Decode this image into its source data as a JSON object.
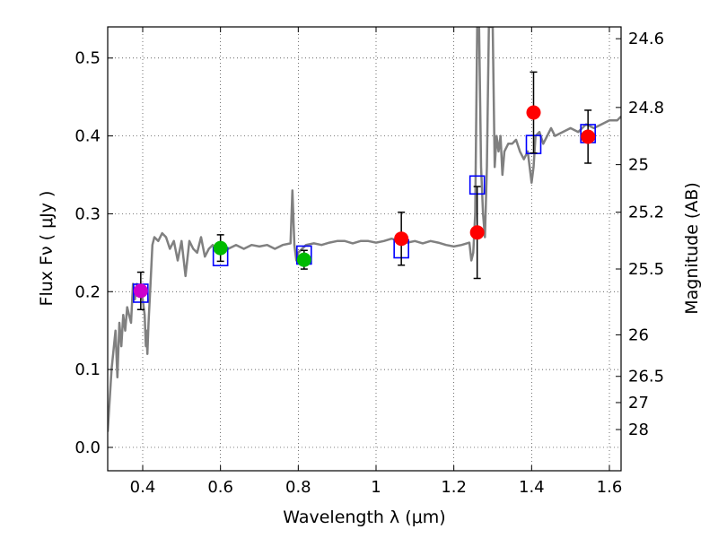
{
  "chart_data": {
    "type": "scatter",
    "xlabel": "Wavelength  λ (μm)",
    "ylabel": "Flux  Fν  ( μJy )",
    "ylabel_right": "Magnitude (AB)",
    "xlim": [
      0.31,
      1.63
    ],
    "ylim": [
      -0.03,
      0.54
    ],
    "xticks": [
      0.4,
      0.6,
      0.8,
      1.0,
      1.2,
      1.4,
      1.6
    ],
    "xtick_labels": [
      "0.4",
      "0.6",
      "0.8",
      "1",
      "1.2",
      "1.4",
      "1.6"
    ],
    "yticks": [
      0.0,
      0.1,
      0.2,
      0.3,
      0.4,
      0.5
    ],
    "ytick_labels": [
      "0.0",
      "0.1",
      "0.2",
      "0.3",
      "0.4",
      "0.5"
    ],
    "mag_ticks": [
      24.6,
      24.8,
      25,
      25.2,
      25.5,
      26,
      26.5,
      27,
      28
    ],
    "mag_tick_labels": [
      "24.6",
      "24.8",
      "25",
      "25.2",
      "25.5",
      "26",
      "26.5",
      "27",
      "28"
    ],
    "grid": true,
    "colors": {
      "spectrum": "#808080",
      "model_box": "#0000ff",
      "error_bar": "#000000",
      "purple": "#cc00cc",
      "green": "#00bb00",
      "red": "#ff0000"
    },
    "spectrum": {
      "name": "model spectrum",
      "x": [
        0.31,
        0.32,
        0.33,
        0.335,
        0.34,
        0.345,
        0.35,
        0.355,
        0.36,
        0.365,
        0.37,
        0.375,
        0.38,
        0.385,
        0.39,
        0.395,
        0.4,
        0.405,
        0.408,
        0.41,
        0.412,
        0.415,
        0.42,
        0.425,
        0.43,
        0.44,
        0.45,
        0.46,
        0.47,
        0.48,
        0.49,
        0.5,
        0.51,
        0.52,
        0.53,
        0.54,
        0.55,
        0.56,
        0.57,
        0.58,
        0.59,
        0.6,
        0.62,
        0.64,
        0.66,
        0.68,
        0.7,
        0.72,
        0.74,
        0.76,
        0.78,
        0.785,
        0.79,
        0.795,
        0.8,
        0.82,
        0.84,
        0.86,
        0.88,
        0.9,
        0.92,
        0.94,
        0.96,
        0.98,
        1.0,
        1.02,
        1.04,
        1.06,
        1.08,
        1.1,
        1.12,
        1.14,
        1.16,
        1.18,
        1.2,
        1.22,
        1.24,
        1.245,
        1.25,
        1.255,
        1.26,
        1.265,
        1.27,
        1.275,
        1.28,
        1.285,
        1.29,
        1.3,
        1.305,
        1.31,
        1.315,
        1.32,
        1.325,
        1.33,
        1.34,
        1.35,
        1.36,
        1.37,
        1.38,
        1.39,
        1.4,
        1.405,
        1.41,
        1.42,
        1.43,
        1.44,
        1.45,
        1.46,
        1.48,
        1.5,
        1.52,
        1.54,
        1.56,
        1.58,
        1.6,
        1.62,
        1.63
      ],
      "y": [
        0.02,
        0.1,
        0.15,
        0.09,
        0.16,
        0.13,
        0.17,
        0.15,
        0.18,
        0.17,
        0.16,
        0.21,
        0.19,
        0.21,
        0.2,
        0.2,
        0.19,
        0.17,
        0.13,
        0.15,
        0.12,
        0.16,
        0.21,
        0.26,
        0.27,
        0.265,
        0.275,
        0.27,
        0.255,
        0.265,
        0.24,
        0.265,
        0.22,
        0.265,
        0.255,
        0.25,
        0.27,
        0.245,
        0.255,
        0.26,
        0.25,
        0.255,
        0.255,
        0.26,
        0.255,
        0.26,
        0.258,
        0.26,
        0.255,
        0.26,
        0.262,
        0.33,
        0.26,
        0.24,
        0.25,
        0.26,
        0.262,
        0.26,
        0.263,
        0.265,
        0.265,
        0.262,
        0.265,
        0.265,
        0.263,
        0.265,
        0.268,
        0.265,
        0.263,
        0.265,
        0.262,
        0.265,
        0.263,
        0.26,
        0.258,
        0.26,
        0.263,
        0.24,
        0.25,
        0.3,
        0.54,
        0.54,
        0.36,
        0.3,
        0.27,
        0.36,
        0.54,
        0.54,
        0.36,
        0.4,
        0.38,
        0.4,
        0.35,
        0.38,
        0.39,
        0.39,
        0.395,
        0.38,
        0.37,
        0.38,
        0.34,
        0.36,
        0.4,
        0.405,
        0.39,
        0.4,
        0.41,
        0.4,
        0.405,
        0.41,
        0.405,
        0.415,
        0.41,
        0.415,
        0.42,
        0.42,
        0.425
      ]
    },
    "series": [
      {
        "name": "model photometry (blue squares)",
        "x": [
          0.395,
          0.6,
          0.815,
          1.065,
          1.26,
          1.405,
          1.545
        ],
        "y": [
          0.198,
          0.245,
          0.247,
          0.255,
          0.337,
          0.389,
          0.403
        ]
      },
      {
        "name": "observed (purple)",
        "x": [
          0.395
        ],
        "y": [
          0.201
        ],
        "err": [
          0.024
        ]
      },
      {
        "name": "observed (green)",
        "x": [
          0.6,
          0.815
        ],
        "y": [
          0.256,
          0.241
        ],
        "err": [
          0.017,
          0.012
        ]
      },
      {
        "name": "observed (red)",
        "x": [
          1.065,
          1.26,
          1.405,
          1.545
        ],
        "y": [
          0.268,
          0.276,
          0.43,
          0.399
        ],
        "err": [
          0.034,
          0.059,
          0.052,
          0.034
        ]
      }
    ]
  }
}
